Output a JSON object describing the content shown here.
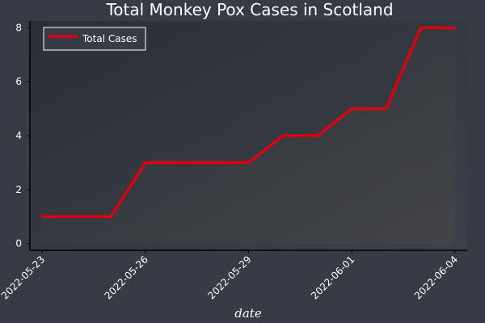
{
  "chart_data": {
    "type": "line",
    "title": "Total Monkey Pox Cases in Scotland",
    "xlabel": "date",
    "ylabel": "",
    "x": [
      "2022-05-23",
      "2022-05-24",
      "2022-05-25",
      "2022-05-26",
      "2022-05-27",
      "2022-05-28",
      "2022-05-29",
      "2022-05-30",
      "2022-05-31",
      "2022-06-01",
      "2022-06-02",
      "2022-06-03",
      "2022-06-04"
    ],
    "x_tick_labels": [
      "2022-05-23",
      "2022-05-26",
      "2022-05-29",
      "2022-06-01",
      "2022-06-04"
    ],
    "y_ticks": [
      0,
      2,
      4,
      6,
      8
    ],
    "ylim": [
      -0.25,
      8.25
    ],
    "grid": false,
    "legend_position": "top-left",
    "series": [
      {
        "name": "Total Cases",
        "color": "#e0000e",
        "values": [
          1,
          1,
          1,
          3,
          3,
          3,
          3,
          4,
          4,
          5,
          5,
          8,
          8
        ]
      }
    ]
  }
}
